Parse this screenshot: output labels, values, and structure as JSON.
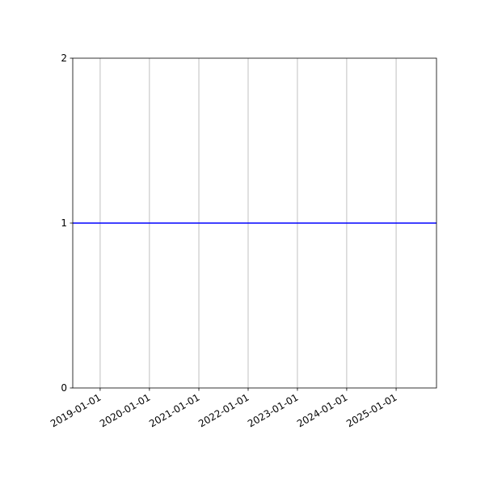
{
  "chart_data": {
    "type": "line",
    "title": "",
    "xlabel": "",
    "ylabel": "",
    "xlim": [
      "2018-06-12",
      "2025-10-27"
    ],
    "ylim": [
      0,
      2
    ],
    "x_ticks": [
      "2019-01-01",
      "2020-01-01",
      "2021-01-01",
      "2022-01-01",
      "2023-01-01",
      "2024-01-01",
      "2025-01-01"
    ],
    "y_ticks": [
      "0",
      "1",
      "2"
    ],
    "grid": "x-axis only",
    "series": [
      {
        "x": [
          "2018-06-12",
          "2025-10-27"
        ],
        "y": [
          1,
          1
        ],
        "color": "#0000ff"
      }
    ]
  }
}
